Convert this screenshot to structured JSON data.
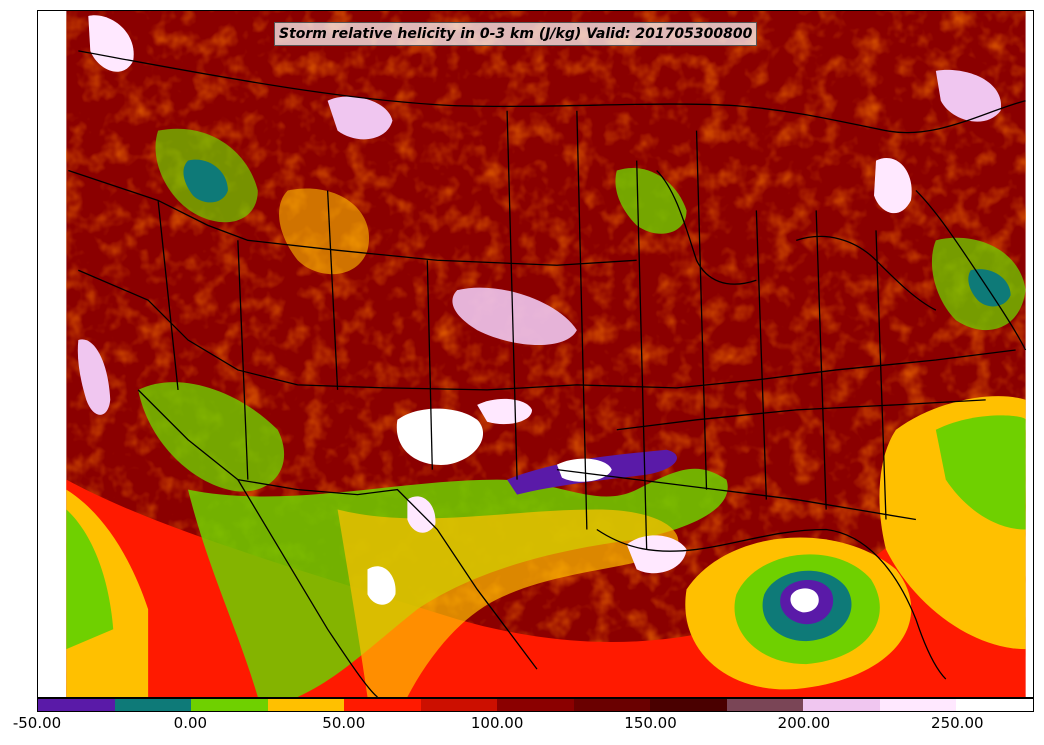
{
  "map": {
    "title": "Storm relative helicity in 0-3 km (J/kg) Valid: 201705300800",
    "field": "storm relative helicity 0-3 km",
    "region": "continental United States",
    "colors": {
      "background": "#7a0000",
      "dark_red": "#8b0000",
      "red": "#ff1a00",
      "orange": "#ffc000",
      "green": "#6fd000",
      "teal": "#0e7a78",
      "purple": "#5a1aa8",
      "white": "#ffffff",
      "boundary": "#000000"
    }
  },
  "colorbar": {
    "segments": [
      {
        "color": "#5a1aa8",
        "range": "-50 to -25"
      },
      {
        "color": "#0e7a78",
        "range": "-25 to 0"
      },
      {
        "color": "#6fd000",
        "range": "0 to 25"
      },
      {
        "color": "#ffc000",
        "range": "25 to 50"
      },
      {
        "color": "#ff1a00",
        "range": "50 to 75"
      },
      {
        "color": "#cc0f00",
        "range": "75 to 100"
      },
      {
        "color": "#8b0000",
        "range": "100 to 125"
      },
      {
        "color": "#6a0000",
        "range": "125 to 150"
      },
      {
        "color": "#4a0000",
        "range": "150 to 175"
      },
      {
        "color": "#7a4556",
        "range": "175 to 200"
      },
      {
        "color": "#f0c6f0",
        "range": "200 to 225"
      },
      {
        "color": "#ffe8ff",
        "range": "225 to 250"
      },
      {
        "color": "#ffffff",
        "range": "250 to 275"
      }
    ],
    "ticks": [
      "-50.00",
      "0.00",
      "50.00",
      "100.00",
      "150.00",
      "200.00",
      "250.00"
    ]
  }
}
